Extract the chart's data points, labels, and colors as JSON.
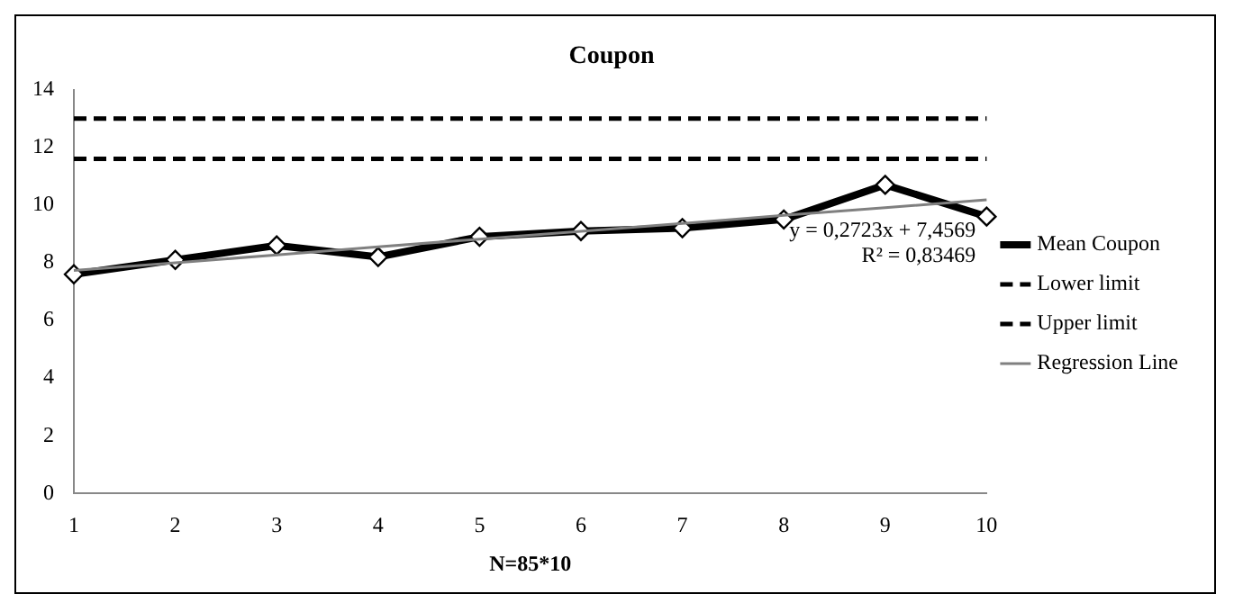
{
  "chart_data": {
    "type": "line",
    "title": "Coupon",
    "xlabel": "N=85*10",
    "categories": [
      "1",
      "2",
      "3",
      "4",
      "5",
      "6",
      "7",
      "8",
      "9",
      "10"
    ],
    "series": [
      {
        "name": "Mean Coupon",
        "color": "#000000",
        "values": [
          7.6,
          8.1,
          8.6,
          8.2,
          8.9,
          9.1,
          9.2,
          9.5,
          10.7,
          9.6
        ],
        "marker": "diamond",
        "line_style": "solid"
      },
      {
        "name": "Lower limit",
        "color": "#000000",
        "values": [
          11.6,
          11.6,
          11.6,
          11.6,
          11.6,
          11.6,
          11.6,
          11.6,
          11.6,
          11.6
        ],
        "marker": "none",
        "line_style": "dashed"
      },
      {
        "name": "Upper limit",
        "color": "#000000",
        "values": [
          13,
          13,
          13,
          13,
          13,
          13,
          13,
          13,
          13,
          13
        ],
        "marker": "none",
        "line_style": "dashed"
      },
      {
        "name": "Regression Line",
        "color": "#808080",
        "values": [
          7.73,
          8.0,
          8.27,
          8.55,
          8.82,
          9.09,
          9.36,
          9.64,
          9.91,
          10.18
        ],
        "marker": "none",
        "line_style": "solid"
      }
    ],
    "ylim": [
      0,
      14
    ],
    "yticks": [
      0,
      2,
      4,
      6,
      8,
      10,
      12,
      14
    ],
    "grid": false,
    "legend": "right",
    "annotations": [
      "y = 0,2723x + 7,4569",
      "R² = 0,83469"
    ]
  }
}
